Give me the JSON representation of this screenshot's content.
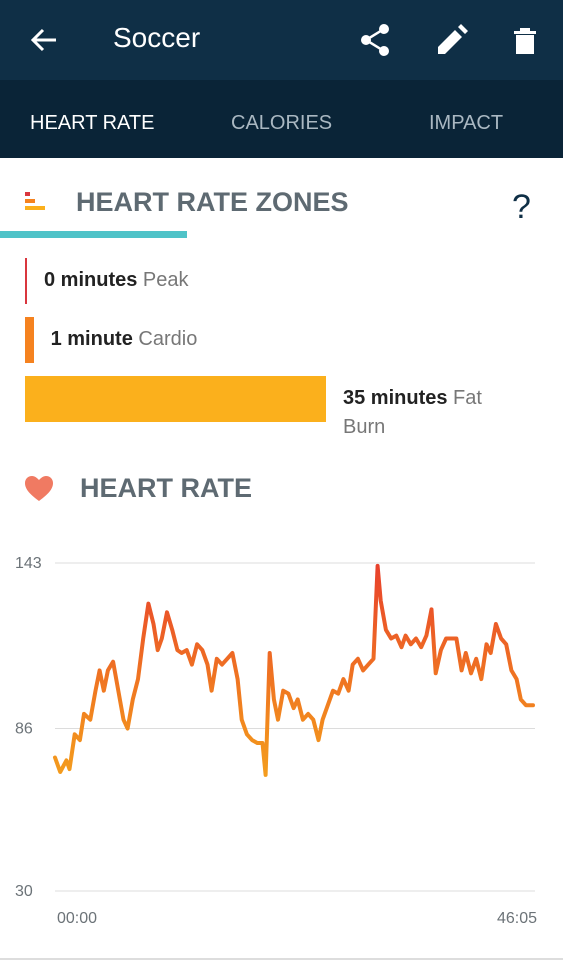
{
  "header": {
    "title": "Soccer"
  },
  "tabs": [
    "HEART RATE",
    "CALORIES",
    "IMPACT"
  ],
  "selected_tab": 0,
  "zones": {
    "title": "HEART RATE ZONES",
    "help": "?",
    "values": [
      0,
      1,
      35
    ],
    "value_labels": [
      "0 minutes",
      "1 minute",
      "35 minutes"
    ],
    "names": [
      "Peak",
      "Cardio",
      "Fat Burn"
    ],
    "colors": [
      "#d9363e",
      "#f5821f",
      "#fbb01c"
    ]
  },
  "chart_data": {
    "type": "line",
    "title": "HEART RATE",
    "x": [
      0,
      0.5,
      1.1,
      1.4,
      1.9,
      2.4,
      2.8,
      3.4,
      3.9,
      4.3,
      4.7,
      5.1,
      5.6,
      6.1,
      6.6,
      7.0,
      7.5,
      8.0,
      8.5,
      9.0,
      9.5,
      9.9,
      10.3,
      10.8,
      11.3,
      11.8,
      12.2,
      12.7,
      13.2,
      13.7,
      14.2,
      14.7,
      15.1,
      15.6,
      16.1,
      16.6,
      17.1,
      17.6,
      18.0,
      18.5,
      19.0,
      19.5,
      20.0,
      20.3,
      20.7,
      21.1,
      21.5,
      22.0,
      22.5,
      23.0,
      23.4,
      23.9,
      24.4,
      24.9,
      25.4,
      25.8,
      26.3,
      26.8,
      27.3,
      27.8,
      28.3,
      28.7,
      29.2,
      29.7,
      30.2,
      30.7,
      31.1,
      31.4,
      31.9,
      32.4,
      32.9,
      33.4,
      33.8,
      34.3,
      34.8,
      35.3,
      35.8,
      36.3,
      36.7,
      37.2,
      37.7,
      38.2,
      38.7,
      39.2,
      39.6,
      40.1,
      40.6,
      41.1,
      41.6,
      42.0,
      42.5,
      43.0,
      43.5,
      44.0,
      44.5,
      44.9,
      45.4,
      46.08
    ],
    "values": [
      76,
      71,
      75,
      72,
      84,
      82,
      91,
      89,
      99,
      106,
      99,
      106,
      109,
      99,
      89,
      86,
      96,
      103,
      117,
      129,
      122,
      113,
      117,
      126,
      120,
      113,
      112,
      113,
      108,
      115,
      113,
      108,
      99,
      110,
      108,
      110,
      112,
      103,
      89,
      84,
      82,
      81,
      81,
      70,
      112,
      96,
      89,
      99,
      98,
      93,
      96,
      89,
      91,
      89,
      82,
      89,
      94,
      99,
      98,
      103,
      99,
      108,
      110,
      106,
      108,
      110,
      142,
      130,
      120,
      117,
      118,
      114,
      118,
      115,
      117,
      114,
      118,
      127,
      105,
      113,
      117,
      117,
      117,
      106,
      112,
      105,
      110,
      103,
      115,
      112,
      122,
      117,
      115,
      106,
      103,
      96,
      94,
      94
    ],
    "xlim": [
      0,
      46.08
    ],
    "ylim": [
      30,
      143
    ],
    "xticks": [
      {
        "value": 0,
        "label": "00:00"
      },
      {
        "value": 46.08,
        "label": "46:05"
      }
    ],
    "yticks": [
      30,
      86,
      143
    ],
    "grid": true,
    "colors": [
      "#f7c71c",
      "#f28a1e",
      "#e8402c"
    ]
  }
}
